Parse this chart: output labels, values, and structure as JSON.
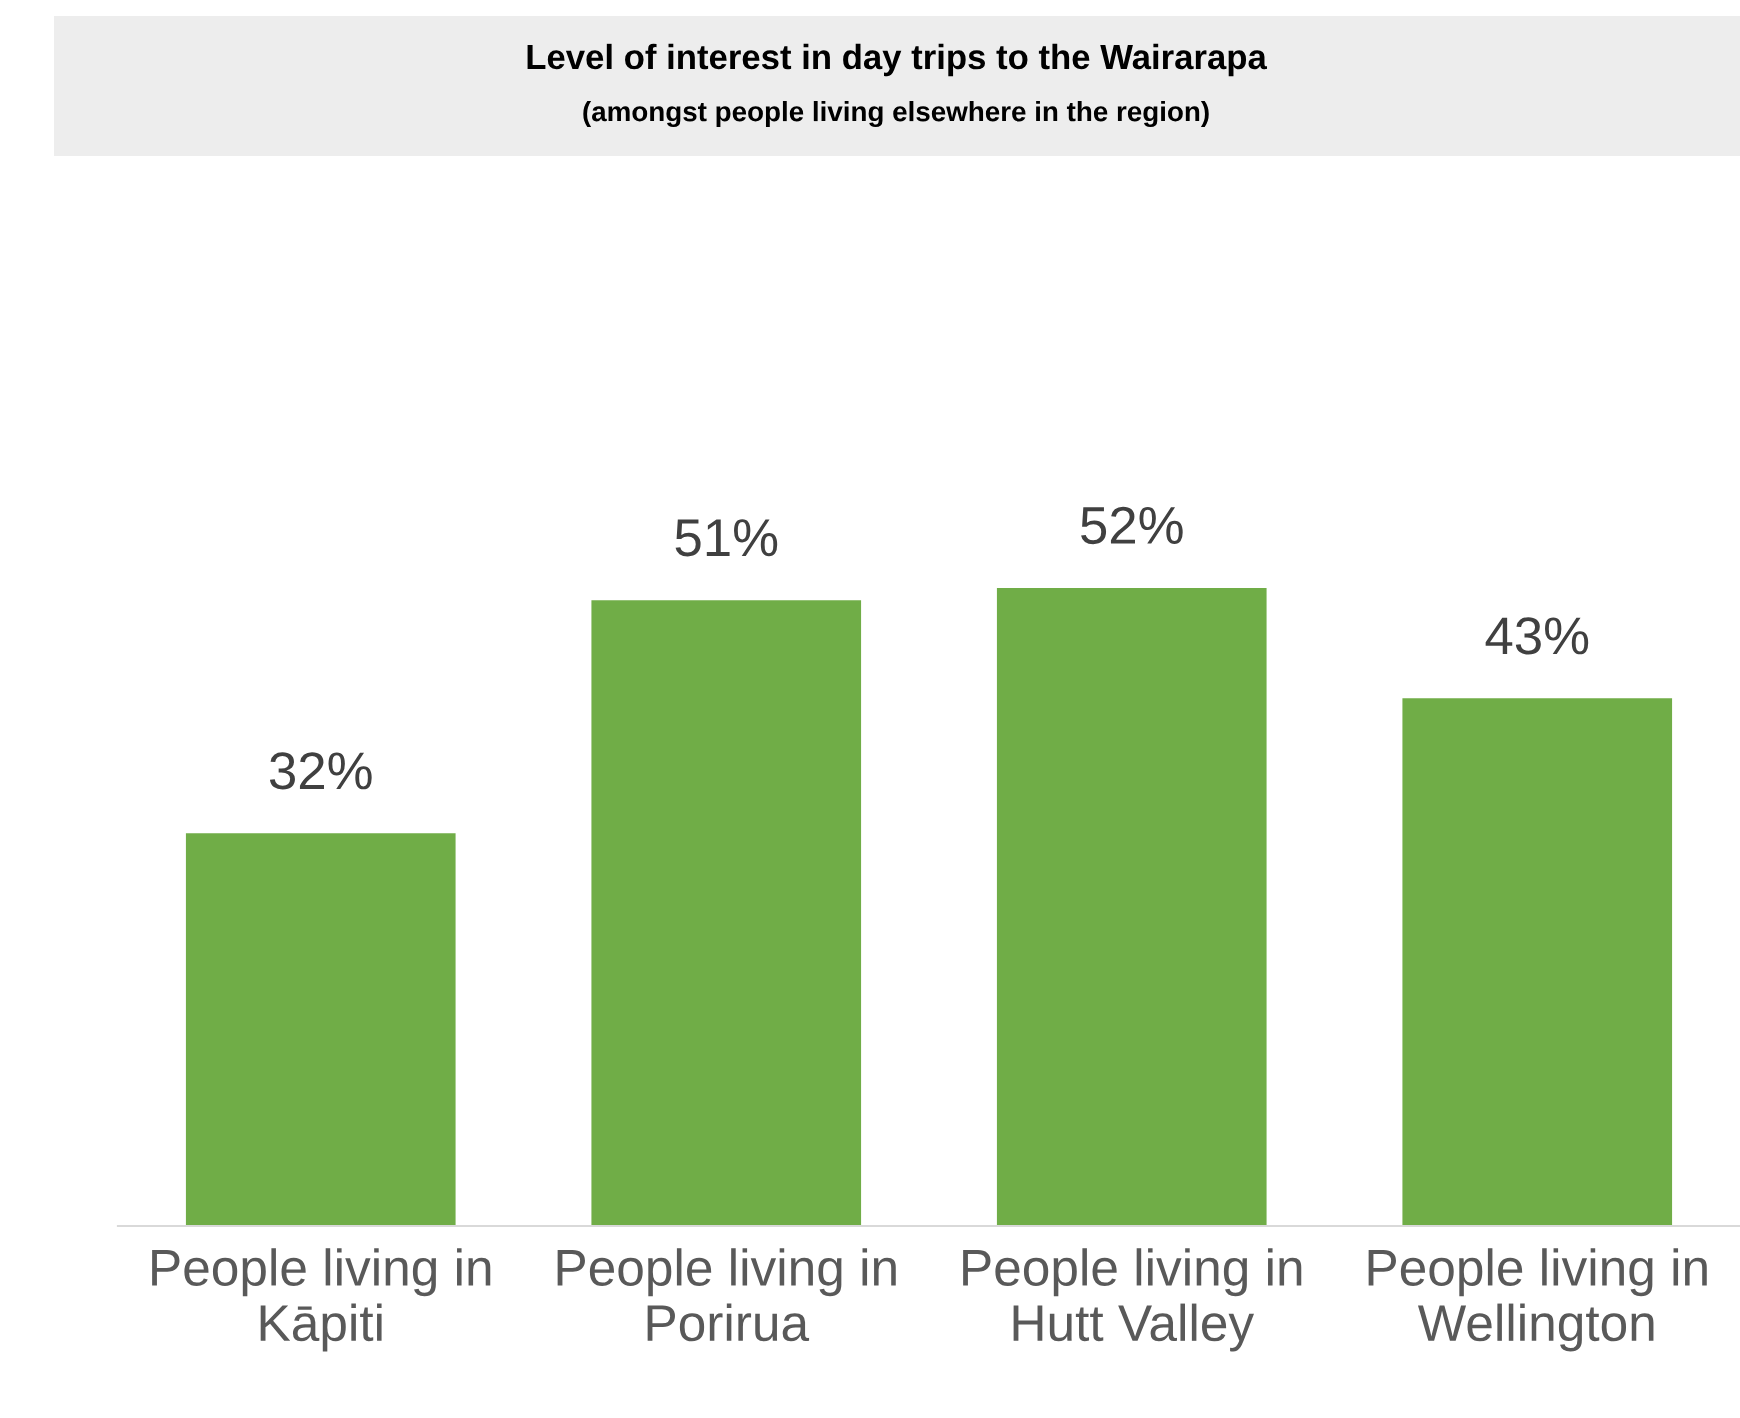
{
  "chart_data": {
    "type": "bar",
    "title": "Level of interest in day trips to the Wairarapa",
    "subtitle": "(amongst people living elsewhere in the region)",
    "categories": [
      "People living in\nKāpiti",
      "People living in\nPorirua",
      "People living in\nHutt Valley",
      "People living in\nWellington"
    ],
    "values": [
      32,
      51,
      52,
      43
    ],
    "value_labels": [
      "32%",
      "51%",
      "52%",
      "43%"
    ],
    "color": "#70ad47",
    "tick_labels": "x",
    "grid": false
  }
}
